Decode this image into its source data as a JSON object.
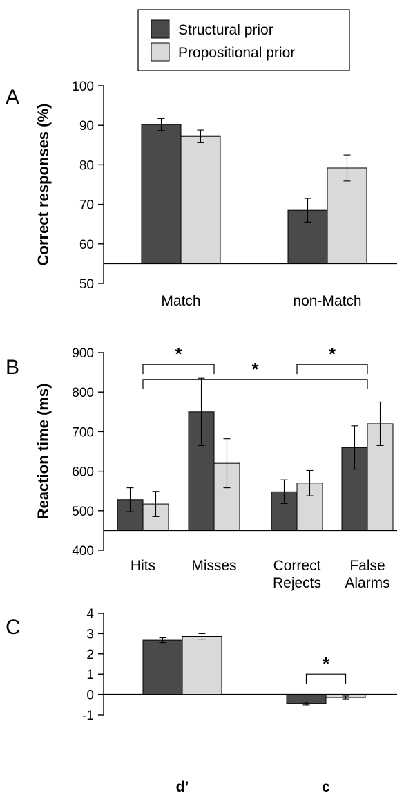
{
  "legend": {
    "items": [
      {
        "label": "Structural prior",
        "color": "#4a4a4a"
      },
      {
        "label": "Propositional prior",
        "color": "#d9d9d9"
      }
    ]
  },
  "colors": {
    "structural": "#4a4a4a",
    "propositional": "#d9d9d9"
  },
  "chart_data": [
    {
      "panel": "A",
      "type": "bar",
      "ylabel": "Correct responses (%)",
      "ylim": [
        50,
        100
      ],
      "yticks": [
        50,
        60,
        70,
        80,
        90,
        100
      ],
      "categories": [
        "Match",
        "non-Match"
      ],
      "baseline": 55,
      "series": [
        {
          "name": "Structural prior",
          "values": [
            90.2,
            68.5
          ],
          "errors": [
            1.5,
            3.0
          ]
        },
        {
          "name": "Propositional prior",
          "values": [
            87.2,
            79.2
          ],
          "errors": [
            1.6,
            3.3
          ]
        }
      ],
      "significance": []
    },
    {
      "panel": "B",
      "type": "bar",
      "ylabel": "Reaction time (ms)",
      "ylim": [
        400,
        900
      ],
      "yticks": [
        400,
        500,
        600,
        700,
        800,
        900
      ],
      "categories": [
        "Hits",
        "Misses",
        "Correct|Rejects",
        "False|Alarms"
      ],
      "baseline": 450,
      "series": [
        {
          "name": "Structural prior",
          "values": [
            528,
            750,
            548,
            660
          ],
          "errors": [
            30,
            85,
            30,
            55
          ]
        },
        {
          "name": "Propositional prior",
          "values": [
            517,
            620,
            570,
            720
          ],
          "errors": [
            32,
            62,
            32,
            55
          ]
        }
      ],
      "significance": [
        {
          "from": 0,
          "to": 1,
          "y": 870,
          "label": "*"
        },
        {
          "from": 2,
          "to": 3,
          "y": 870,
          "label": "*"
        },
        {
          "from": 0,
          "to": 3,
          "y": 832,
          "label": "*"
        }
      ]
    },
    {
      "panel": "C",
      "type": "bar",
      "ylabel": "",
      "ylim": [
        -1,
        4
      ],
      "yticks": [
        -1,
        0,
        1,
        2,
        3,
        4
      ],
      "categories": [
        "d’",
        "c"
      ],
      "baseline": 0,
      "series": [
        {
          "name": "Structural prior",
          "values": [
            2.67,
            -0.45
          ],
          "errors": [
            0.12,
            0.07
          ]
        },
        {
          "name": "Propositional prior",
          "values": [
            2.86,
            -0.15
          ],
          "errors": [
            0.14,
            0.07
          ]
        }
      ],
      "significance": [
        {
          "within": 1,
          "y": 1.0,
          "label": "*"
        }
      ]
    }
  ]
}
